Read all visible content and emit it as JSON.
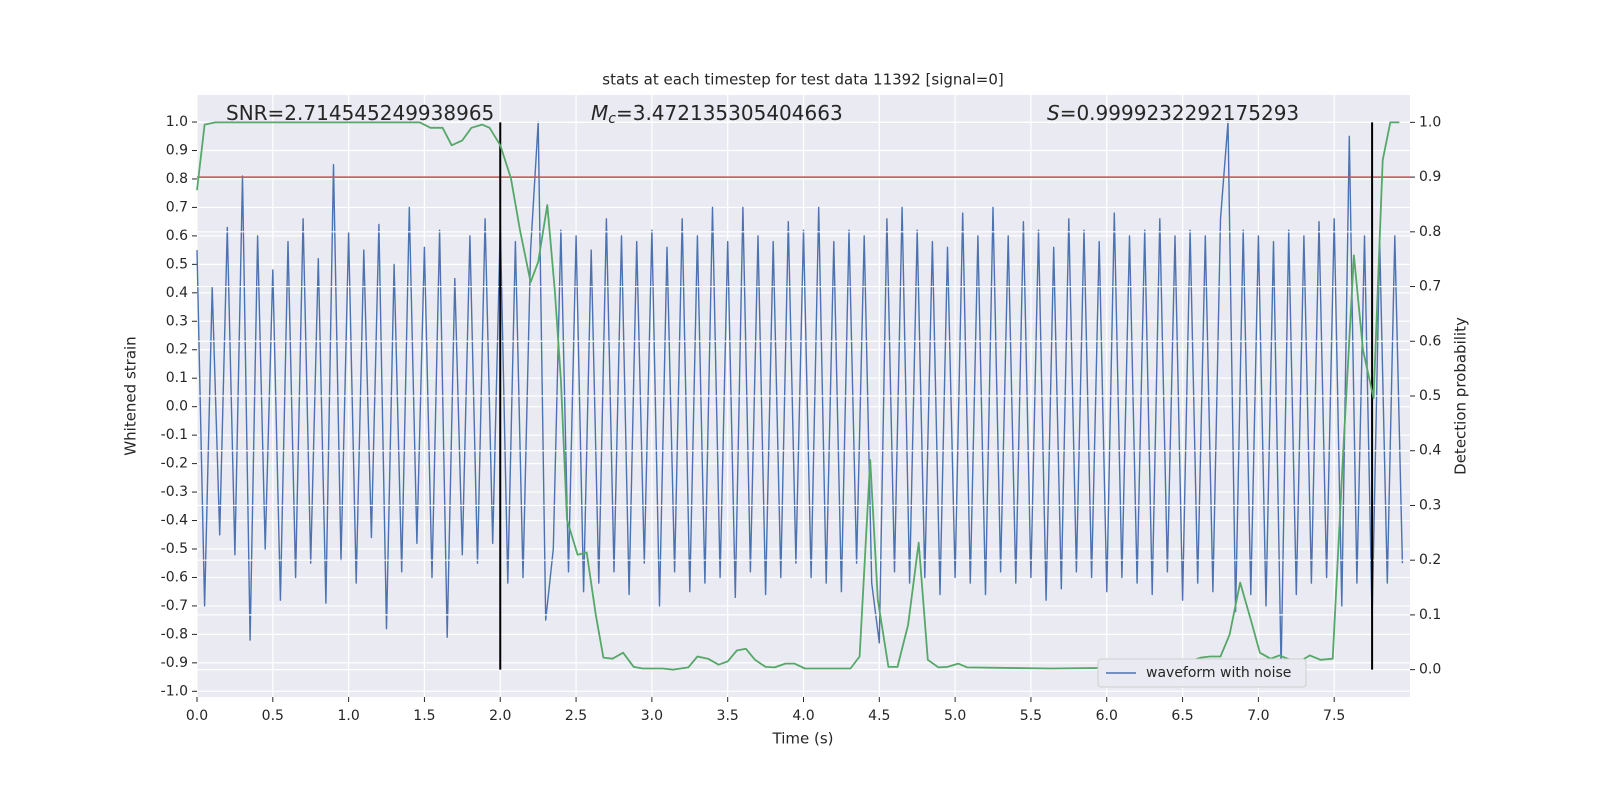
{
  "chart_data": {
    "type": "line",
    "title": "stats at each timestep for test data 11392 [signal=0]",
    "xlabel": "Time (s)",
    "ylabel": "Whitened strain",
    "y2label": "Detection probability",
    "annotations": [
      {
        "parts": [
          "SNR=2.714545249938965"
        ]
      },
      {
        "parts": [
          "M",
          "c",
          "=3.472135305404663"
        ]
      },
      {
        "parts": [
          "S",
          "=0.9999232292175293"
        ]
      }
    ],
    "xlim": [
      0,
      8
    ],
    "ylim": [
      -1.02,
      1.095
    ],
    "y2lim": [
      -0.05,
      1.05
    ],
    "xticks": [
      {
        "value": 0,
        "label": "0.0"
      },
      0.5,
      {
        "value": 1,
        "label": "1.0"
      },
      1.5,
      {
        "value": 2,
        "label": "2.0"
      },
      2.5,
      {
        "value": 3,
        "label": "3.0"
      },
      3.5,
      {
        "value": 4,
        "label": "4.0"
      },
      4.5,
      {
        "value": 5,
        "label": "5.0"
      },
      5.5,
      {
        "value": 6,
        "label": "6.0"
      },
      6.5,
      {
        "value": 7,
        "label": "7.0"
      },
      7.5
    ],
    "yticks": [
      {
        "value": -1,
        "label": "-1.0"
      },
      -0.9,
      -0.8,
      -0.7,
      -0.6,
      -0.5,
      -0.4,
      -0.3,
      -0.2,
      -0.1,
      {
        "value": 0,
        "label": "0.0"
      },
      0.1,
      0.2,
      0.3,
      0.4,
      0.5,
      0.6,
      0.7,
      0.8,
      0.9,
      {
        "value": 1,
        "label": "1.0"
      }
    ],
    "y2ticks": [
      {
        "value": 0,
        "label": "0.0"
      },
      0.1,
      0.2,
      0.3,
      0.4,
      0.5,
      0.6,
      0.7,
      0.8,
      0.9,
      {
        "value": 1,
        "label": "1.0"
      }
    ],
    "grid": true,
    "legend": "lower right",
    "series": [
      {
        "name": "waveform with noise",
        "color": "#4c72b0",
        "x": [
          0,
          0.05,
          0.1,
          0.15,
          0.2,
          0.25,
          0.3,
          0.35,
          0.4,
          0.45,
          0.5,
          0.55,
          0.6,
          0.65,
          0.7,
          0.75,
          0.8,
          0.85,
          0.9,
          0.95,
          1,
          1.05,
          1.1,
          1.15,
          1.2,
          1.25,
          1.3,
          1.35,
          1.4,
          1.45,
          1.5,
          1.55,
          1.6,
          1.65,
          1.7,
          1.75,
          1.8,
          1.85,
          1.9,
          1.95,
          2,
          2.05,
          2.1,
          2.15,
          2.2,
          2.25,
          2.3,
          2.35,
          2.4,
          2.45,
          2.5,
          2.55,
          2.6,
          2.65,
          2.7,
          2.75,
          2.8,
          2.85,
          2.9,
          2.95,
          3,
          3.05,
          3.1,
          3.15,
          3.2,
          3.25,
          3.3,
          3.35,
          3.4,
          3.45,
          3.5,
          3.55,
          3.6,
          3.65,
          3.7,
          3.75,
          3.8,
          3.85,
          3.9,
          3.95,
          4,
          4.05,
          4.1,
          4.15,
          4.2,
          4.25,
          4.3,
          4.35,
          4.4,
          4.45,
          4.5,
          4.55,
          4.6,
          4.65,
          4.7,
          4.75,
          4.8,
          4.85,
          4.9,
          4.95,
          5,
          5.05,
          5.1,
          5.15,
          5.2,
          5.25,
          5.3,
          5.35,
          5.4,
          5.45,
          5.5,
          5.55,
          5.6,
          5.65,
          5.7,
          5.75,
          5.8,
          5.85,
          5.9,
          5.95,
          6,
          6.05,
          6.1,
          6.15,
          6.2,
          6.25,
          6.3,
          6.35,
          6.4,
          6.45,
          6.5,
          6.55,
          6.6,
          6.65,
          6.7,
          6.75,
          6.8,
          6.85,
          6.9,
          6.95,
          7,
          7.05,
          7.1,
          7.15,
          7.2,
          7.25,
          7.3,
          7.35,
          7.4,
          7.45,
          7.5,
          7.55,
          7.6,
          7.65,
          7.7,
          7.75,
          7.8,
          7.85,
          7.9,
          7.95
        ],
        "values": [
          0.55,
          -0.7,
          0.42,
          -0.45,
          0.63,
          -0.52,
          0.81,
          -0.82,
          0.6,
          -0.5,
          0.48,
          -0.68,
          0.58,
          -0.6,
          0.66,
          -0.55,
          0.52,
          -0.69,
          0.85,
          -0.54,
          0.61,
          -0.62,
          0.55,
          -0.46,
          0.64,
          -0.78,
          0.5,
          -0.58,
          0.7,
          -0.48,
          0.56,
          -0.6,
          0.62,
          -0.81,
          0.45,
          -0.52,
          0.6,
          -0.55,
          0.66,
          -0.48,
          0.64,
          -0.62,
          0.58,
          -0.6,
          0.55,
          1.0,
          -0.75,
          -0.5,
          0.62,
          -0.58,
          0.6,
          -0.65,
          0.55,
          -0.62,
          0.66,
          -0.58,
          0.6,
          -0.66,
          0.58,
          -0.55,
          0.62,
          -0.7,
          0.56,
          -0.58,
          0.66,
          -0.65,
          0.6,
          -0.62,
          0.7,
          -0.6,
          0.58,
          -0.67,
          0.7,
          -0.58,
          0.6,
          -0.66,
          0.58,
          -0.6,
          0.65,
          -0.55,
          0.62,
          -0.6,
          0.7,
          -0.62,
          0.58,
          -0.65,
          0.62,
          -0.55,
          0.6,
          -0.62,
          -0.83,
          0.66,
          -0.58,
          0.7,
          -0.62,
          0.62,
          -0.6,
          0.58,
          -0.66,
          0.56,
          -0.6,
          0.68,
          -0.62,
          0.6,
          -0.66,
          0.7,
          -0.58,
          0.6,
          -0.62,
          0.65,
          -0.6,
          0.62,
          -0.68,
          0.56,
          -0.64,
          0.66,
          -0.58,
          0.62,
          -0.6,
          0.58,
          -0.65,
          0.68,
          -0.6,
          0.6,
          -0.62,
          0.62,
          -0.66,
          0.66,
          -0.58,
          0.6,
          -0.68,
          0.62,
          -0.62,
          0.6,
          -0.65,
          0.66,
          1.0,
          -0.72,
          0.62,
          -0.66,
          0.6,
          -0.7,
          0.58,
          -0.92,
          0.62,
          -0.66,
          0.6,
          -0.62,
          0.65,
          -0.6,
          0.66,
          -0.7,
          0.95,
          -0.62,
          0.6,
          -0.75,
          0.58,
          -0.62,
          0.6,
          -0.55
        ]
      },
      {
        "color": "#55a868",
        "axis": "y2",
        "x": [
          0,
          0.05,
          0.12,
          1.47,
          1.54,
          1.62,
          1.68,
          1.75,
          1.81,
          1.88,
          1.93,
          2.0,
          2.07,
          2.13,
          2.2,
          2.25,
          2.31,
          2.36,
          2.4,
          2.44,
          2.51,
          2.57,
          2.63,
          2.68,
          2.74,
          2.81,
          2.88,
          2.94,
          3.07,
          3.14,
          3.24,
          3.3,
          3.37,
          3.44,
          3.5,
          3.56,
          3.62,
          3.68,
          3.75,
          3.81,
          3.88,
          3.94,
          4.01,
          4.31,
          4.37,
          4.44,
          4.49,
          4.56,
          4.62,
          4.69,
          4.76,
          4.82,
          4.89,
          4.95,
          5.02,
          5.08,
          5.63,
          6.35,
          6.48,
          6.62,
          6.68,
          6.75,
          6.81,
          6.88,
          6.95,
          7.01,
          7.08,
          7.14,
          7.21,
          7.28,
          7.34,
          7.41,
          7.49,
          7.56,
          7.63,
          7.69,
          7.76,
          7.82,
          7.87,
          7.93
        ],
        "values": [
          0.876,
          0.996,
          1.0,
          1.0,
          0.99,
          0.99,
          0.958,
          0.967,
          0.99,
          0.996,
          0.99,
          0.958,
          0.898,
          0.803,
          0.708,
          0.745,
          0.849,
          0.693,
          0.529,
          0.274,
          0.21,
          0.214,
          0.1,
          0.022,
          0.02,
          0.031,
          0.005,
          0.002,
          0.002,
          0,
          0.004,
          0.024,
          0.02,
          0.009,
          0.015,
          0.035,
          0.038,
          0.018,
          0.005,
          0.004,
          0.011,
          0.011,
          0.002,
          0.002,
          0.024,
          0.383,
          0.128,
          0.005,
          0.005,
          0.082,
          0.232,
          0.018,
          0.004,
          0.005,
          0.011,
          0.004,
          0.002,
          0.004,
          0.009,
          0.022,
          0.024,
          0.024,
          0.064,
          0.159,
          0.091,
          0.031,
          0.02,
          0.026,
          0.018,
          0.016,
          0.026,
          0.018,
          0.02,
          0.401,
          0.757,
          0.584,
          0.496,
          0.931,
          1.0,
          1.0
        ]
      }
    ],
    "hlines": [
      {
        "y": 0.9,
        "axis": "y2",
        "color": "#c44e52"
      }
    ],
    "vlines": [
      {
        "x": 2,
        "ymin": 0,
        "ymax": 1,
        "axis": "y2",
        "color": "#000000"
      },
      {
        "x": 7.75,
        "ymin": 0,
        "ymax": 1,
        "axis": "y2",
        "color": "#000000"
      }
    ]
  }
}
